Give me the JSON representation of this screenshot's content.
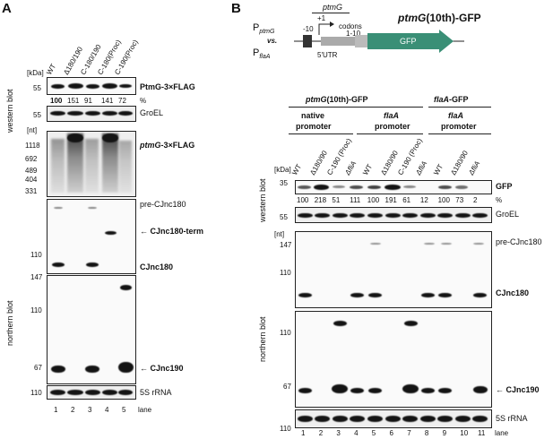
{
  "panel_a": {
    "letter": "A",
    "lanes": [
      "WT",
      "Δ180/190",
      "C-180/190",
      "C-180(Proc)",
      "C-190(Proc)"
    ],
    "kda_label": "[kDa]",
    "nt_label": "[nt]",
    "western_label": "western blot",
    "northern_label": "northern blot",
    "ptmg_marker": "55",
    "ptmg_label": "PtmG-3×FLAG",
    "ptmg_values": [
      "100",
      "151",
      "91",
      "141",
      "72"
    ],
    "percent": "%",
    "groel_marker": "55",
    "groel_label": "GroEL",
    "ptmg_rna_label_italic": "ptmG",
    "ptmg_rna_label_rest": "-3×FLAG",
    "nt_markers": [
      "1118",
      "692",
      "489",
      "404",
      "331"
    ],
    "pre_label": "pre-CJnc180",
    "term_label": "CJnc180-term",
    "cjnc180_label": "CJnc180",
    "marker_110_a": "110",
    "marker_147": "147",
    "marker_110_b": "110",
    "marker_67": "67",
    "cjnc190_label": "CJnc190",
    "rrna_marker": "110",
    "rrna_label": "5S rRNA",
    "lane_numbers": [
      "1",
      "2",
      "3",
      "4",
      "5"
    ],
    "lane_word": "lane"
  },
  "panel_b": {
    "letter": "B",
    "title_italic": "ptmG",
    "title_rest": "(10th)-GFP",
    "schematic": {
      "p_label": "P",
      "p_sub1": "ptmG",
      "vs": "vs.",
      "p_sub2": "flaA",
      "gene": "ptmG",
      "minus10": "-10",
      "plus1": "+1",
      "codons": "codons",
      "codon_range": "1-10",
      "utr": "5'UTR",
      "gfp": "GFP"
    },
    "group_headers": [
      {
        "italic": "ptmG",
        "rest": "(10th)-GFP"
      },
      {
        "italic": "flaA",
        "rest": "-GFP"
      }
    ],
    "sub_headers": [
      {
        "line1": "native",
        "line2": "promoter"
      },
      {
        "line1": "flaA",
        "line2": "promoter"
      },
      {
        "line1": "flaA",
        "line2": "promoter"
      }
    ],
    "lanes": [
      "WT",
      "Δ180/90",
      "C-190 (Proc)",
      "ΔfliA",
      "WT",
      "Δ180/90",
      "C-190 (Proc)",
      "ΔfliA",
      "WT",
      "Δ180/90",
      "ΔfliA"
    ],
    "kda_label": "[kDa]",
    "nt_label": "[nt]",
    "western_label": "western blot",
    "northern_label": "northern blot",
    "gfp_marker": "35",
    "gfp_label": "GFP",
    "gfp_values": [
      "100",
      "218",
      "51",
      "111",
      "100",
      "191",
      "61",
      "12",
      "100",
      "73",
      "2"
    ],
    "percent": "%",
    "groel_marker": "55",
    "groel_label": "GroEL",
    "pre_label": "pre-CJnc180",
    "marker_147": "147",
    "marker_110_a": "110",
    "cjnc180_label": "CJnc180",
    "marker_110_b": "110",
    "marker_67": "67",
    "cjnc190_label": "CJnc190",
    "rrna_marker": "110",
    "rrna_label": "5S rRNA",
    "lane_numbers": [
      "1",
      "2",
      "3",
      "4",
      "5",
      "6",
      "7",
      "8",
      "9",
      "10",
      "11"
    ],
    "lane_word": "lane"
  }
}
